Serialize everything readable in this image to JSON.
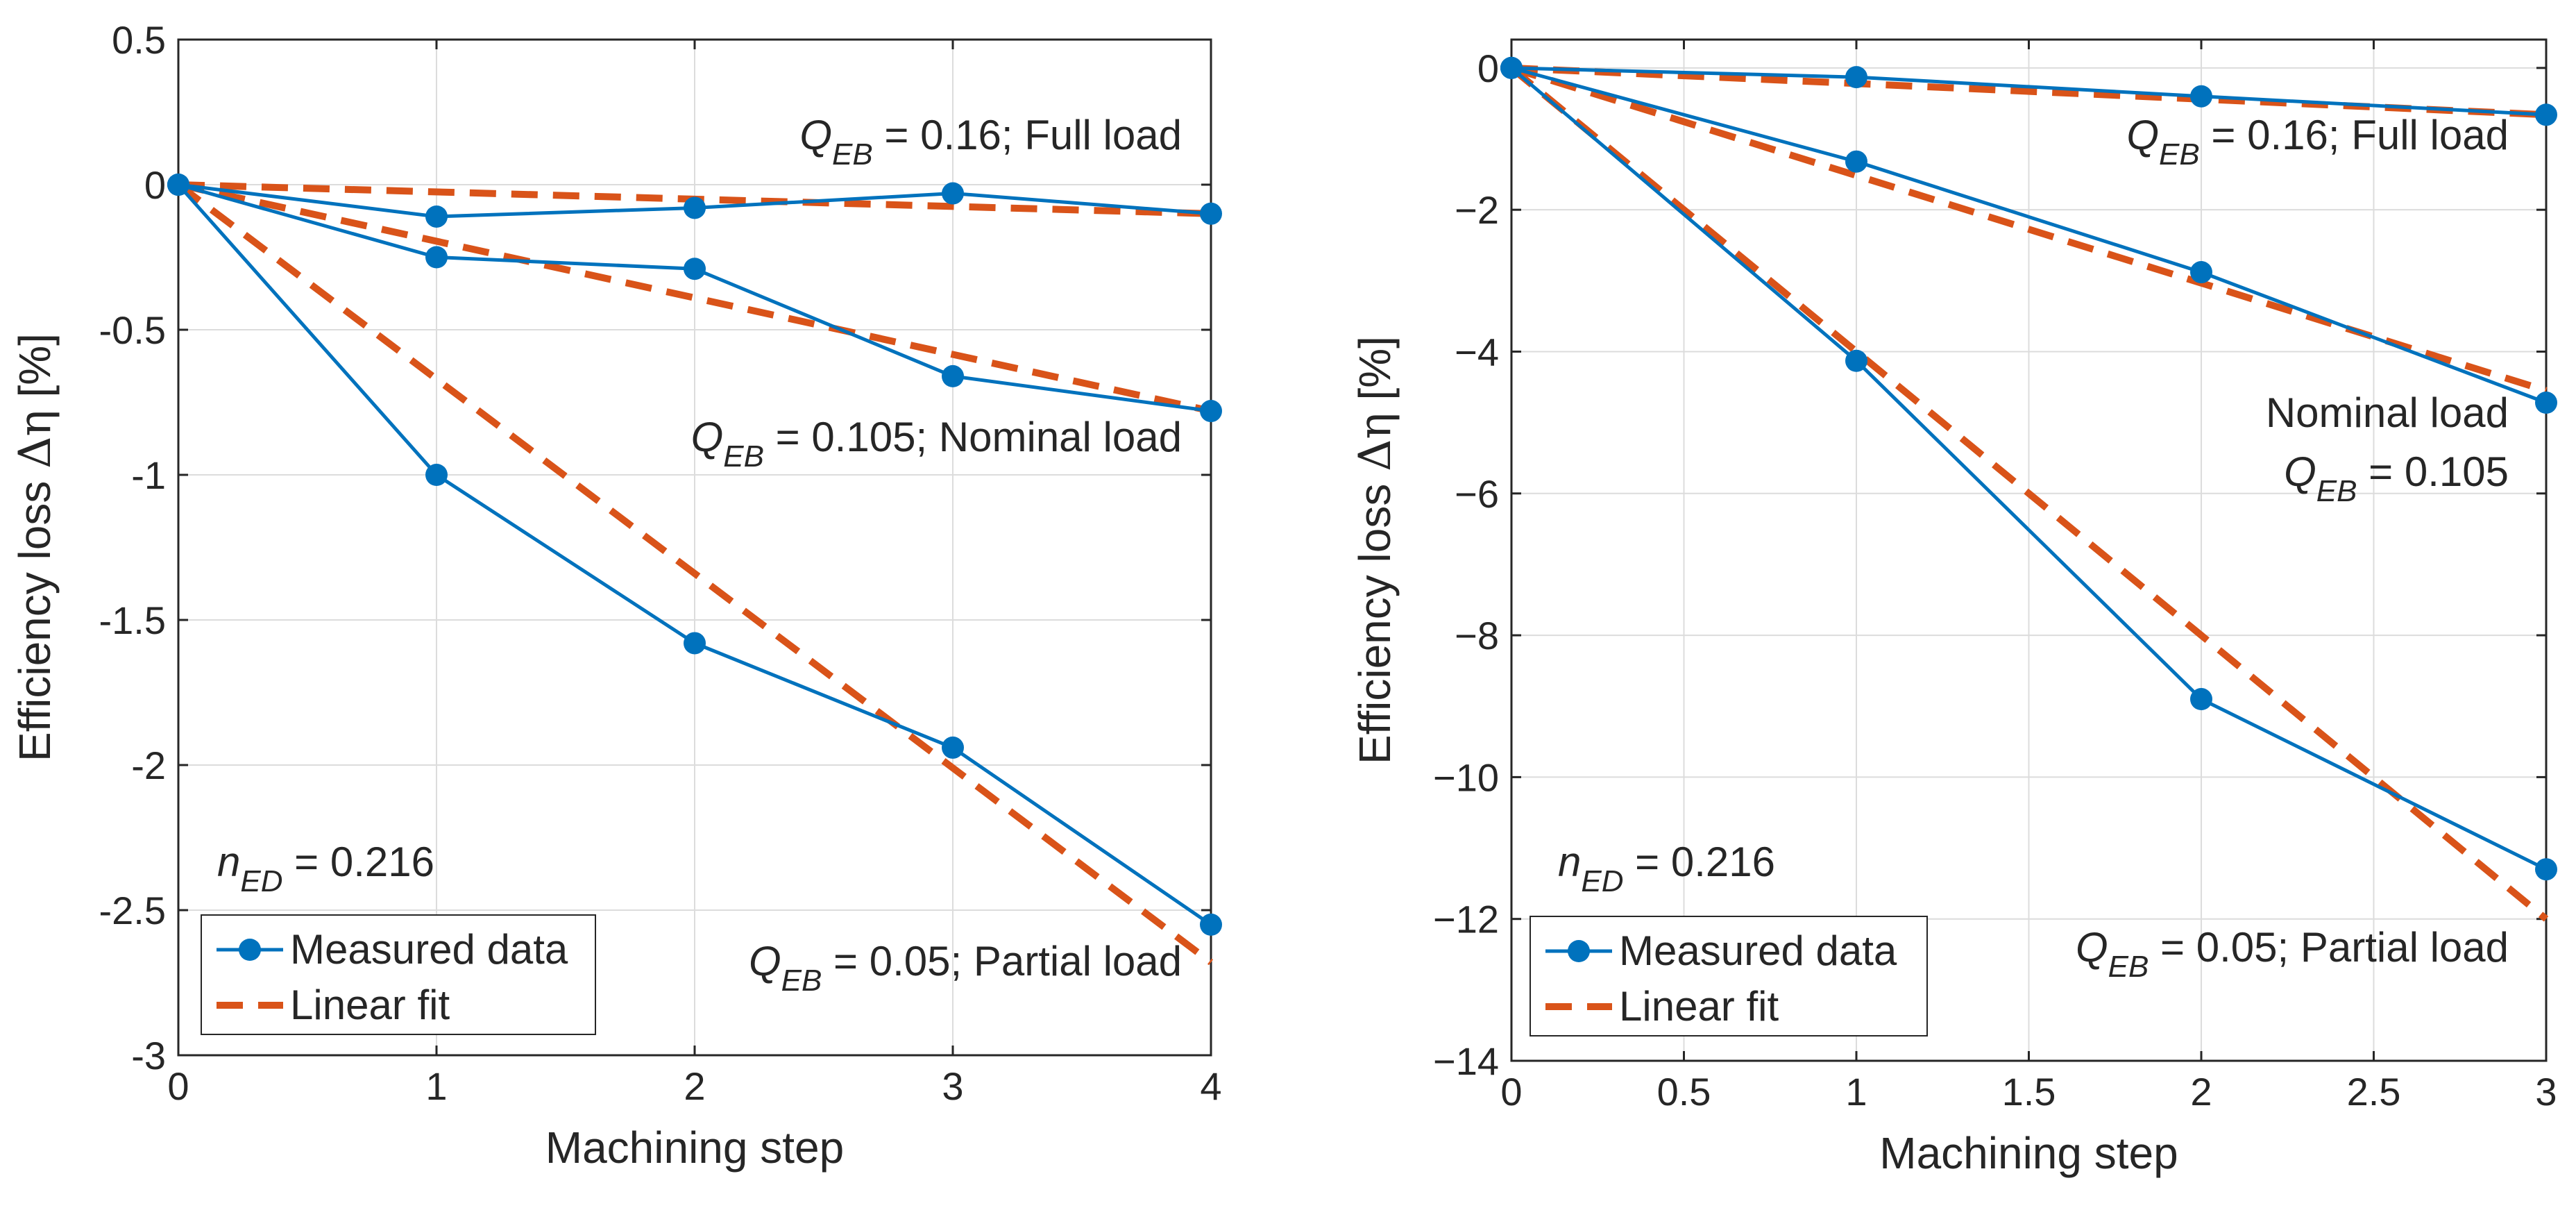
{
  "chart_data": [
    {
      "type": "line",
      "xlabel": "Machining step",
      "ylabel_prefix": "Efficiency loss ",
      "ylabel_symbol": "Δη",
      "ylabel_suffix": " [%]",
      "xlim": [
        0,
        4
      ],
      "ylim": [
        -3,
        0.5
      ],
      "xticks": [
        0,
        1,
        2,
        3,
        4
      ],
      "xtick_labels": [
        "0",
        "1",
        "2",
        "3",
        "4"
      ],
      "yticks": [
        0.5,
        0,
        -0.5,
        -1,
        -1.5,
        -2,
        -2.5,
        -3
      ],
      "ytick_labels": [
        "0.5",
        "0",
        "-0.5",
        "-1",
        "-1.5",
        "-2",
        "-2.5",
        "-3"
      ],
      "grid": true,
      "series": [
        {
          "name": "Measured data",
          "group": "full",
          "x": [
            0,
            1,
            2,
            3,
            4
          ],
          "y": [
            0,
            -0.11,
            -0.08,
            -0.03,
            -0.1
          ]
        },
        {
          "name": "Measured data",
          "group": "nominal",
          "x": [
            0,
            1,
            2,
            3,
            4
          ],
          "y": [
            0,
            -0.25,
            -0.29,
            -0.66,
            -0.78
          ]
        },
        {
          "name": "Measured data",
          "group": "partial",
          "x": [
            0,
            1,
            2,
            3,
            4
          ],
          "y": [
            0,
            -1.0,
            -1.58,
            -1.94,
            -2.55
          ]
        },
        {
          "name": "Linear fit",
          "group": "full",
          "x": [
            0,
            4
          ],
          "y": [
            0,
            -0.1
          ]
        },
        {
          "name": "Linear fit",
          "group": "nominal",
          "x": [
            0,
            4
          ],
          "y": [
            0,
            -0.78
          ]
        },
        {
          "name": "Linear fit",
          "group": "partial",
          "x": [
            0,
            4
          ],
          "y": [
            0,
            -2.68
          ]
        }
      ],
      "annotations": [
        {
          "name": "full",
          "var": "Q",
          "sub": "EB",
          "rest": " = 0.16; Full load"
        },
        {
          "name": "nominal",
          "var": "Q",
          "sub": "EB",
          "rest": " = 0.105; Nominal load"
        },
        {
          "name": "partial",
          "var": "Q",
          "sub": "EB",
          "rest": " = 0.05; Partial load"
        },
        {
          "name": "ned",
          "var": "n",
          "sub": "ED",
          "rest": " = 0.216"
        }
      ],
      "legend": {
        "location": "bottom-left",
        "entries": [
          "Measured data",
          "Linear fit"
        ]
      }
    },
    {
      "type": "line",
      "xlabel": "Machining step",
      "ylabel_prefix": "Efficiency loss ",
      "ylabel_symbol": "Δη",
      "ylabel_suffix": " [%]",
      "xlim": [
        0,
        3
      ],
      "ylim": [
        -14,
        0.4
      ],
      "xticks": [
        0,
        0.5,
        1,
        1.5,
        2,
        2.5,
        3
      ],
      "xtick_labels": [
        "0",
        "0.5",
        "1",
        "1.5",
        "2",
        "2.5",
        "3"
      ],
      "yticks": [
        0,
        -2,
        -4,
        -6,
        -8,
        -10,
        -12,
        -14
      ],
      "ytick_labels": [
        "0",
        "−2",
        "−4",
        "−6",
        "−8",
        "−10",
        "−12",
        "−14"
      ],
      "grid": true,
      "series": [
        {
          "name": "Measured data",
          "group": "full",
          "x": [
            0,
            1,
            2,
            3
          ],
          "y": [
            0,
            -0.13,
            -0.4,
            -0.66
          ]
        },
        {
          "name": "Measured data",
          "group": "nominal",
          "x": [
            0,
            1,
            2,
            3
          ],
          "y": [
            0,
            -1.32,
            -2.88,
            -4.72
          ]
        },
        {
          "name": "Measured data",
          "group": "partial",
          "x": [
            0,
            1,
            2,
            3
          ],
          "y": [
            0,
            -4.13,
            -8.9,
            -11.3
          ]
        },
        {
          "name": "Linear fit",
          "group": "full",
          "x": [
            0,
            3
          ],
          "y": [
            0,
            -0.66
          ]
        },
        {
          "name": "Linear fit",
          "group": "nominal",
          "x": [
            0,
            3
          ],
          "y": [
            0,
            -4.55
          ]
        },
        {
          "name": "Linear fit",
          "group": "partial",
          "x": [
            0,
            3
          ],
          "y": [
            0,
            -12.0
          ]
        }
      ],
      "annotations": [
        {
          "name": "full",
          "var": "Q",
          "sub": "EB",
          "rest": " = 0.16; Full load"
        },
        {
          "name": "nominal-line1",
          "var": "",
          "sub": "",
          "rest": "Nominal load"
        },
        {
          "name": "nominal-line2",
          "var": "Q",
          "sub": "EB",
          "rest": " = 0.105"
        },
        {
          "name": "partial",
          "var": "Q",
          "sub": "EB",
          "rest": " = 0.05; Partial load"
        },
        {
          "name": "ned",
          "var": "n",
          "sub": "ED",
          "rest": " = 0.216"
        }
      ],
      "legend": {
        "location": "bottom-left",
        "entries": [
          "Measured data",
          "Linear fit"
        ]
      }
    }
  ],
  "colors": {
    "measured": "#0072BD",
    "fit": "#D95319",
    "text": "#262626",
    "grid": "#dcdcdc"
  }
}
